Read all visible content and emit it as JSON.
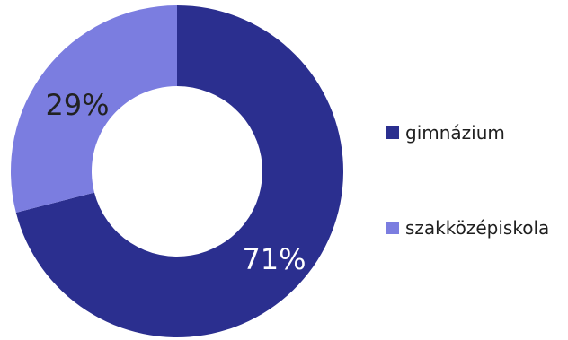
{
  "chart_data": {
    "type": "pie",
    "donut": true,
    "categories": [
      "gimnázium",
      "szakközépiskola"
    ],
    "values": [
      71,
      29
    ],
    "data_labels": [
      "71%",
      "29%"
    ],
    "colors": [
      "#2b2f8f",
      "#7b7de0"
    ],
    "label_colors": [
      "#ffffff",
      "#222222"
    ],
    "legend_position": "right"
  }
}
